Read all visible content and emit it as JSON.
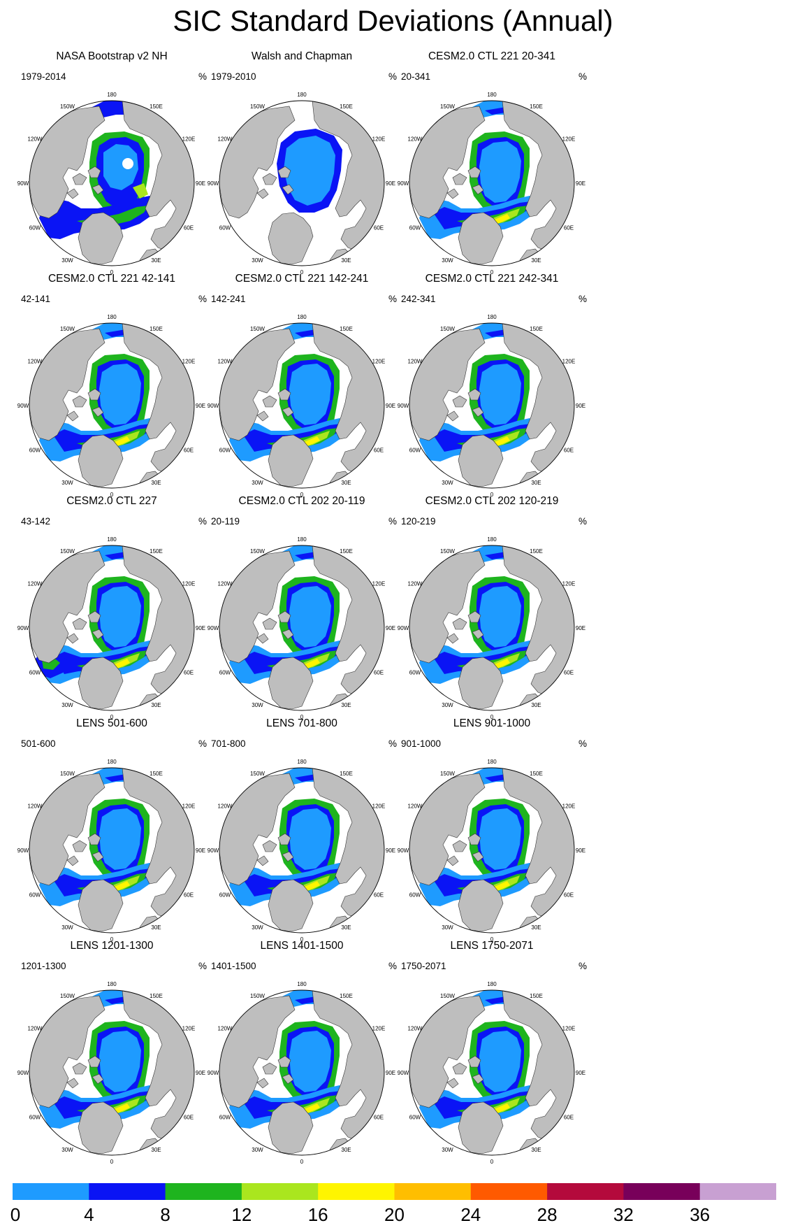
{
  "title": "SIC Standard Deviations (Annual)",
  "units": "%",
  "colormap": {
    "levels": [
      "0",
      "4",
      "8",
      "12",
      "16",
      "20",
      "24",
      "28",
      "32",
      "36"
    ],
    "colors": [
      "#1E9BFF",
      "#0A14F5",
      "#1EB41E",
      "#AAE61E",
      "#FFF500",
      "#FFBE00",
      "#FF5A00",
      "#B40A3C",
      "#78005A",
      "#C8A0D2"
    ]
  },
  "longitude_labels": [
    "180",
    "150E",
    "120E",
    "90E",
    "60E",
    "30E",
    "0",
    "30W",
    "60W",
    "90W",
    "120W",
    "150W"
  ],
  "map_colors": {
    "land": "#BEBEBE",
    "open_ocean": "#FFFFFF",
    "coast": "#333333"
  },
  "panels": [
    {
      "title": "NASA Bootstrap v2 NH",
      "period": "1979-2014",
      "style": "obs",
      "pole_hole": true
    },
    {
      "title": "Walsh and Chapman",
      "period": "1979-2010",
      "style": "walsh"
    },
    {
      "title": "CESM2.0 CTL 221 20-341",
      "period": "20-341",
      "style": "model"
    },
    {
      "title": "CESM2.0 CTL 221 42-141",
      "period": "42-141",
      "style": "model"
    },
    {
      "title": "CESM2.0 CTL 221 142-241",
      "period": "142-241",
      "style": "model"
    },
    {
      "title": "CESM2.0 CTL 221 242-341",
      "period": "242-341",
      "style": "model"
    },
    {
      "title": "CESM2.0 CTL 227",
      "period": "43-142",
      "style": "model227"
    },
    {
      "title": "CESM2.0 CTL 202 20-119",
      "period": "20-119",
      "style": "model"
    },
    {
      "title": "CESM2.0 CTL 202 120-219",
      "period": "120-219",
      "style": "model"
    },
    {
      "title": "LENS 501-600",
      "period": "501-600",
      "style": "lens"
    },
    {
      "title": "LENS 701-800",
      "period": "701-800",
      "style": "lens"
    },
    {
      "title": "LENS 901-1000",
      "period": "901-1000",
      "style": "lens"
    },
    {
      "title": "LENS 1201-1300",
      "period": "1201-1300",
      "style": "lens"
    },
    {
      "title": "LENS 1401-1500",
      "period": "1401-1500",
      "style": "lens"
    },
    {
      "title": "LENS 1750-2071",
      "period": "1750-2071",
      "style": "lens"
    }
  ]
}
